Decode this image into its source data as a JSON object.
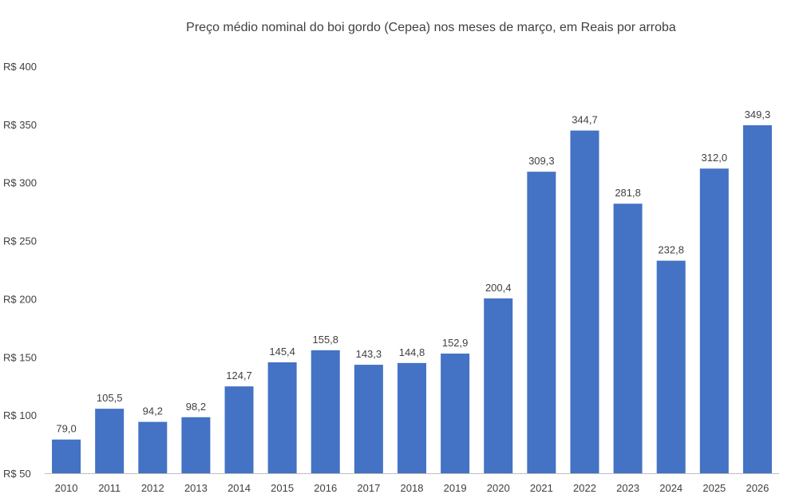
{
  "chart_data": {
    "type": "bar",
    "title": "Preço médio nominal do boi gordo (Cepea) nos meses de março, em Reais por arroba",
    "xlabel": "",
    "ylabel": "",
    "categories": [
      "2010",
      "2011",
      "2012",
      "2013",
      "2014",
      "2015",
      "2016",
      "2017",
      "2018",
      "2019",
      "2020",
      "2021",
      "2022",
      "2023",
      "2024",
      "2025",
      "2026"
    ],
    "values": [
      79.0,
      105.5,
      94.2,
      98.2,
      124.7,
      145.4,
      155.8,
      143.3,
      144.8,
      152.9,
      200.4,
      309.3,
      344.7,
      281.8,
      232.8,
      312.0,
      349.3
    ],
    "data_labels": [
      "79,0",
      "105,5",
      "94,2",
      "98,2",
      "124,7",
      "145,4",
      "155,8",
      "143,3",
      "144,8",
      "152,9",
      "200,4",
      "309,3",
      "344,7",
      "281,8",
      "232,8",
      "312,0",
      "349,3"
    ],
    "ylim": [
      50,
      400
    ],
    "y_ticks": [
      50,
      100,
      150,
      200,
      250,
      300,
      350,
      400
    ],
    "y_tick_labels": [
      "R$ 50",
      "R$ 100",
      "R$ 150",
      "R$ 200",
      "R$ 250",
      "R$ 300",
      "R$ 350",
      "R$ 400"
    ],
    "grid": false,
    "legend": "none",
    "bar_color": "#4472C4",
    "text_color": "#404040",
    "axis_color": "#BFBFBF"
  }
}
